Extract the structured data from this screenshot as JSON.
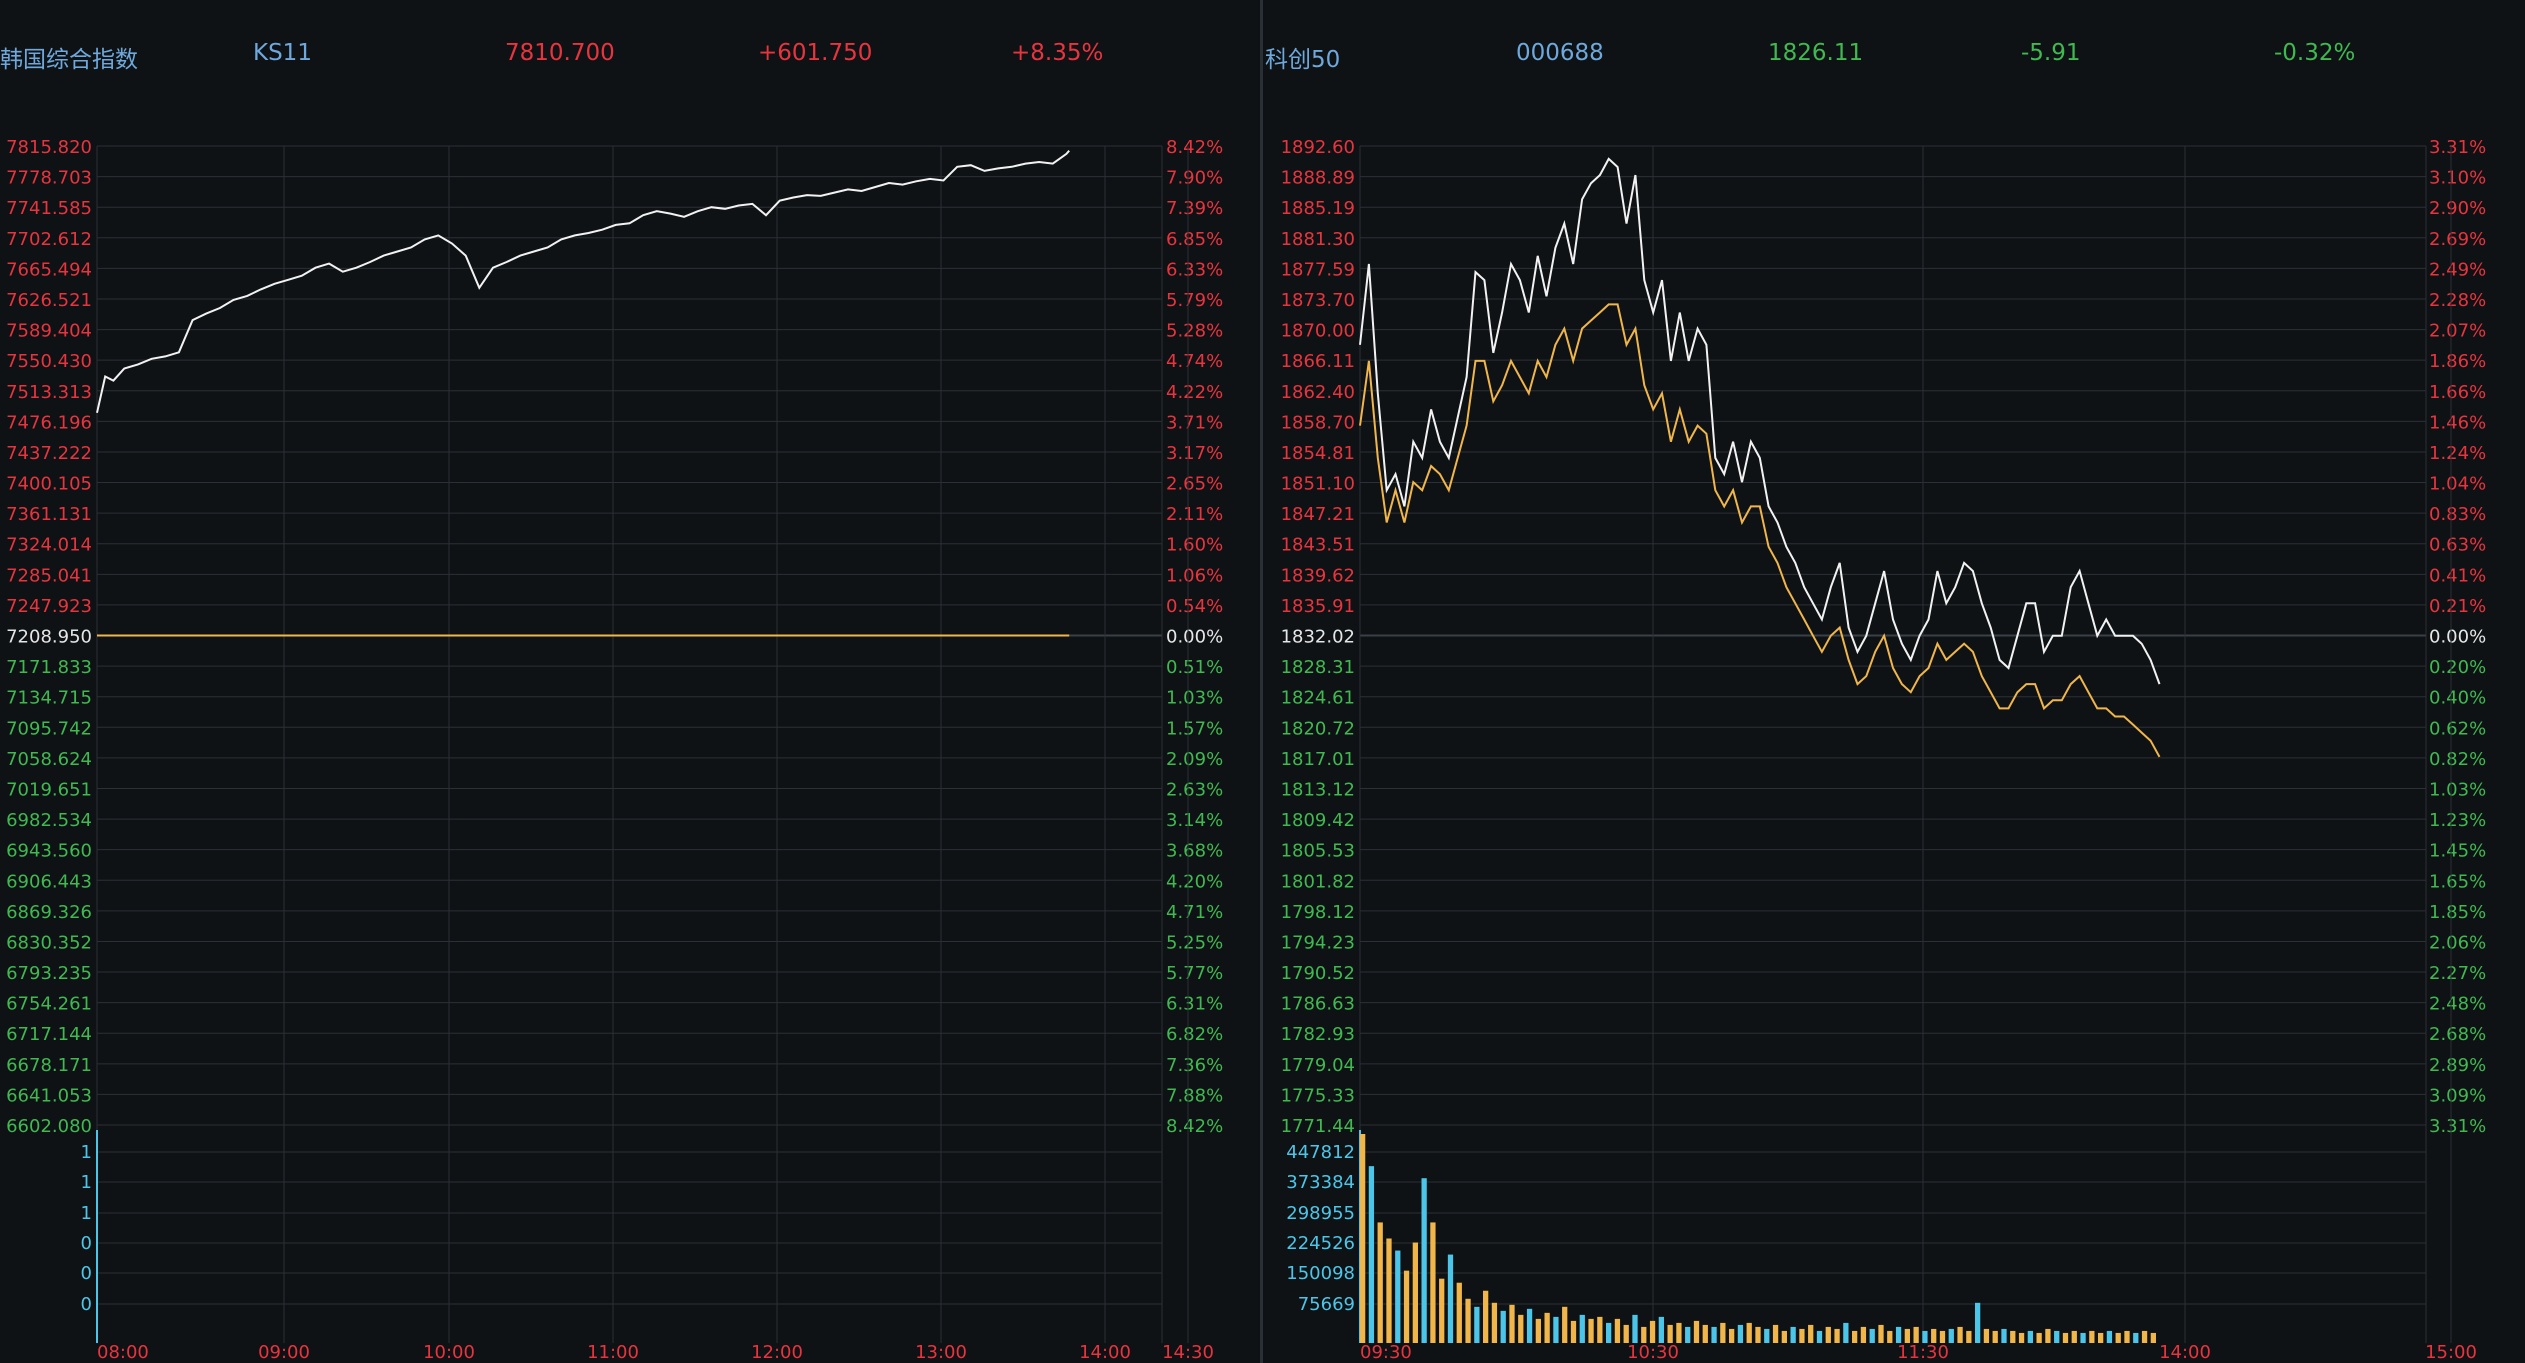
{
  "colors": {
    "up": "#e8343e",
    "down": "#3fb950",
    "neutral": "#e6e6e6",
    "name": "#6ea8dc",
    "grid": "#2b3036",
    "price_line": "#f2f2f2",
    "avg_line": "#f0b64a",
    "volume_axis": "#4cc6e8"
  },
  "left": {
    "name": "韩国综合指数",
    "code": "KS11",
    "price": "7810.700",
    "change": "+601.750",
    "change_pct": "+8.35%"
  },
  "right": {
    "name": "科创50",
    "code": "000688",
    "price": "1826.11",
    "change": "-5.91",
    "change_pct": "-0.32%"
  },
  "chart_data": [
    {
      "type": "line",
      "title": "韩国综合指数",
      "prev_close": 7208.95,
      "ylim": [
        6602.08,
        7815.82
      ],
      "price_axis_labels": [
        "7815.820",
        "7778.703",
        "7741.585",
        "7702.612",
        "7665.494",
        "7626.521",
        "7589.404",
        "7550.430",
        "7513.313",
        "7476.196",
        "7437.222",
        "7400.105",
        "7361.131",
        "7324.014",
        "7285.041",
        "7247.923",
        "7208.950",
        "7171.833",
        "7134.715",
        "7095.742",
        "7058.624",
        "7019.651",
        "6982.534",
        "6943.560",
        "6906.443",
        "6869.326",
        "6830.352",
        "6793.235",
        "6754.261",
        "6717.144",
        "6678.171",
        "6641.053",
        "6602.080"
      ],
      "pct_axis_labels": [
        "8.42%",
        "7.90%",
        "7.39%",
        "6.85%",
        "6.33%",
        "5.79%",
        "5.28%",
        "4.74%",
        "4.22%",
        "3.71%",
        "3.17%",
        "2.65%",
        "2.11%",
        "1.60%",
        "1.06%",
        "0.54%",
        "0.00%",
        "0.51%",
        "1.03%",
        "1.57%",
        "2.09%",
        "2.63%",
        "3.14%",
        "3.68%",
        "4.20%",
        "4.71%",
        "5.25%",
        "5.77%",
        "6.31%",
        "6.82%",
        "7.36%",
        "7.88%",
        "8.42%"
      ],
      "x_ticks": [
        "08:00",
        "09:00",
        "10:00",
        "11:00",
        "12:00",
        "13:00",
        "14:00",
        "14:30"
      ],
      "series": [
        {
          "key": "price",
          "x": [
            0,
            3,
            6,
            10,
            15,
            20,
            25,
            30,
            35,
            40,
            45,
            50,
            55,
            60,
            65,
            70,
            75,
            80,
            85,
            90,
            95,
            100,
            105,
            110,
            115,
            120,
            125,
            130,
            135,
            140,
            145,
            150,
            155,
            160,
            165,
            170,
            175,
            180,
            185,
            190,
            195,
            200,
            205,
            210,
            215,
            220,
            225,
            230,
            235,
            240,
            245,
            250,
            255,
            260,
            265,
            270,
            275,
            280,
            285,
            290,
            295,
            300,
            305,
            310,
            315,
            320,
            325,
            330,
            335,
            340,
            345,
            350,
            355,
            356
          ],
          "values": [
            7485,
            7530,
            7525,
            7540,
            7545,
            7552,
            7555,
            7560,
            7600,
            7608,
            7615,
            7625,
            7630,
            7638,
            7645,
            7650,
            7655,
            7665,
            7670,
            7660,
            7665,
            7672,
            7680,
            7685,
            7690,
            7700,
            7705,
            7695,
            7680,
            7640,
            7665,
            7672,
            7680,
            7685,
            7690,
            7700,
            7705,
            7708,
            7712,
            7718,
            7720,
            7730,
            7735,
            7732,
            7728,
            7735,
            7740,
            7738,
            7742,
            7744,
            7730,
            7748,
            7752,
            7755,
            7754,
            7758,
            7762,
            7760,
            7765,
            7770,
            7768,
            7772,
            7775,
            7773,
            7790,
            7792,
            7785,
            7788,
            7790,
            7794,
            7796,
            7794,
            7806,
            7810
          ]
        },
        {
          "key": "avg",
          "x": [
            0,
            356
          ],
          "values": [
            7208.95,
            7208.95
          ]
        }
      ],
      "volume_axis_labels": [
        "1",
        "1",
        "1",
        "0",
        "0",
        "0"
      ]
    },
    {
      "type": "line",
      "title": "科创50",
      "prev_close": 1832.02,
      "ylim": [
        1771.44,
        1892.6
      ],
      "price_axis_labels": [
        "1892.60",
        "1888.89",
        "1885.19",
        "1881.30",
        "1877.59",
        "1873.70",
        "1870.00",
        "1866.11",
        "1862.40",
        "1858.70",
        "1854.81",
        "1851.10",
        "1847.21",
        "1843.51",
        "1839.62",
        "1835.91",
        "1832.02",
        "1828.31",
        "1824.61",
        "1820.72",
        "1817.01",
        "1813.12",
        "1809.42",
        "1805.53",
        "1801.82",
        "1798.12",
        "1794.23",
        "1790.52",
        "1786.63",
        "1782.93",
        "1779.04",
        "1775.33",
        "1771.44"
      ],
      "pct_axis_labels": [
        "3.31%",
        "3.10%",
        "2.90%",
        "2.69%",
        "2.49%",
        "2.28%",
        "2.07%",
        "1.86%",
        "1.66%",
        "1.46%",
        "1.24%",
        "1.04%",
        "0.83%",
        "0.63%",
        "0.41%",
        "0.21%",
        "0.00%",
        "0.20%",
        "0.40%",
        "0.62%",
        "0.82%",
        "1.03%",
        "1.23%",
        "1.45%",
        "1.65%",
        "1.85%",
        "2.06%",
        "2.27%",
        "2.48%",
        "2.68%",
        "2.89%",
        "3.09%",
        "3.31%"
      ],
      "x_ticks": [
        "09:30",
        "10:30",
        "11:30",
        "14:00",
        "15:00"
      ],
      "series": [
        {
          "key": "price",
          "x": [
            0,
            2,
            4,
            6,
            8,
            10,
            12,
            14,
            16,
            18,
            20,
            22,
            24,
            26,
            28,
            30,
            32,
            34,
            36,
            38,
            40,
            42,
            44,
            46,
            48,
            50,
            52,
            54,
            56,
            58,
            60,
            62,
            64,
            66,
            68,
            70,
            72,
            74,
            76,
            78,
            80,
            82,
            84,
            86,
            88,
            90,
            92,
            94,
            96,
            98,
            100,
            102,
            104,
            106,
            108,
            110,
            112,
            114,
            116,
            118,
            120,
            122,
            124,
            126,
            128,
            130,
            132,
            134,
            136,
            138,
            140,
            142,
            144,
            146,
            148,
            150,
            152,
            154,
            156,
            158,
            160,
            162,
            164,
            166,
            168,
            170,
            172,
            174,
            176,
            178,
            180
          ],
          "values": [
            1868,
            1878,
            1862,
            1850,
            1852,
            1848,
            1856,
            1854,
            1860,
            1856,
            1854,
            1859,
            1864,
            1877,
            1876,
            1867,
            1872,
            1878,
            1876,
            1872,
            1879,
            1874,
            1880,
            1883,
            1878,
            1886,
            1888,
            1889,
            1891,
            1890,
            1883,
            1889,
            1876,
            1872,
            1876,
            1866,
            1872,
            1866,
            1870,
            1868,
            1854,
            1852,
            1856,
            1851,
            1856,
            1854,
            1848,
            1846,
            1843,
            1841,
            1838,
            1836,
            1834,
            1838,
            1841,
            1833,
            1830,
            1832,
            1836,
            1840,
            1834,
            1831,
            1829,
            1832,
            1834,
            1840,
            1836,
            1838,
            1841,
            1840,
            1836,
            1833,
            1829,
            1828,
            1832,
            1836,
            1836,
            1830,
            1832,
            1832,
            1838,
            1840,
            1836,
            1832,
            1834,
            1832,
            1832,
            1832,
            1831,
            1829,
            1826
          ]
        },
        {
          "key": "avg",
          "x": [
            0,
            2,
            4,
            6,
            8,
            10,
            12,
            14,
            16,
            18,
            20,
            22,
            24,
            26,
            28,
            30,
            32,
            34,
            36,
            38,
            40,
            42,
            44,
            46,
            48,
            50,
            52,
            54,
            56,
            58,
            60,
            62,
            64,
            66,
            68,
            70,
            72,
            74,
            76,
            78,
            80,
            82,
            84,
            86,
            88,
            90,
            92,
            94,
            96,
            98,
            100,
            102,
            104,
            106,
            108,
            110,
            112,
            114,
            116,
            118,
            120,
            122,
            124,
            126,
            128,
            130,
            132,
            134,
            136,
            138,
            140,
            142,
            144,
            146,
            148,
            150,
            152,
            154,
            156,
            158,
            160,
            162,
            164,
            166,
            168,
            170,
            172,
            174,
            176,
            178,
            180
          ],
          "values": [
            1858,
            1866,
            1854,
            1846,
            1850,
            1846,
            1851,
            1850,
            1853,
            1852,
            1850,
            1854,
            1858,
            1866,
            1866,
            1861,
            1863,
            1866,
            1864,
            1862,
            1866,
            1864,
            1868,
            1870,
            1866,
            1870,
            1871,
            1872,
            1873,
            1873,
            1868,
            1870,
            1863,
            1860,
            1862,
            1856,
            1860,
            1856,
            1858,
            1857,
            1850,
            1848,
            1850,
            1846,
            1848,
            1848,
            1843,
            1841,
            1838,
            1836,
            1834,
            1832,
            1830,
            1832,
            1833,
            1829,
            1826,
            1827,
            1830,
            1832,
            1828,
            1826,
            1825,
            1827,
            1828,
            1831,
            1829,
            1830,
            1831,
            1830,
            1827,
            1825,
            1823,
            1823,
            1825,
            1826,
            1826,
            1823,
            1824,
            1824,
            1826,
            1827,
            1825,
            1823,
            1823,
            1822,
            1822,
            1821,
            1820,
            1819,
            1817
          ]
        }
      ],
      "volume_axis_labels": [
        "447812",
        "373384",
        "298955",
        "224526",
        "150098",
        "75669"
      ],
      "volume": [
        520000,
        440000,
        300000,
        260000,
        230000,
        180000,
        250000,
        410000,
        300000,
        160000,
        220000,
        150000,
        110000,
        90000,
        130000,
        100000,
        80000,
        95000,
        70000,
        85000,
        60000,
        75000,
        65000,
        90000,
        55000,
        70000,
        60000,
        65000,
        50000,
        60000,
        45000,
        70000,
        40000,
        55000,
        65000,
        45000,
        50000,
        40000,
        55000,
        45000,
        40000,
        50000,
        35000,
        45000,
        50000,
        40000,
        35000,
        45000,
        30000,
        40000,
        35000,
        45000,
        30000,
        40000,
        35000,
        50000,
        30000,
        40000,
        35000,
        45000,
        30000,
        40000,
        35000,
        40000,
        30000,
        35000,
        30000,
        35000,
        40000,
        30000,
        100000,
        35000,
        30000,
        35000,
        30000,
        25000,
        30000,
        25000,
        35000,
        30000,
        25000,
        30000,
        25000,
        30000,
        25000,
        30000,
        25000,
        30000,
        25000,
        30000,
        25000
      ]
    }
  ]
}
